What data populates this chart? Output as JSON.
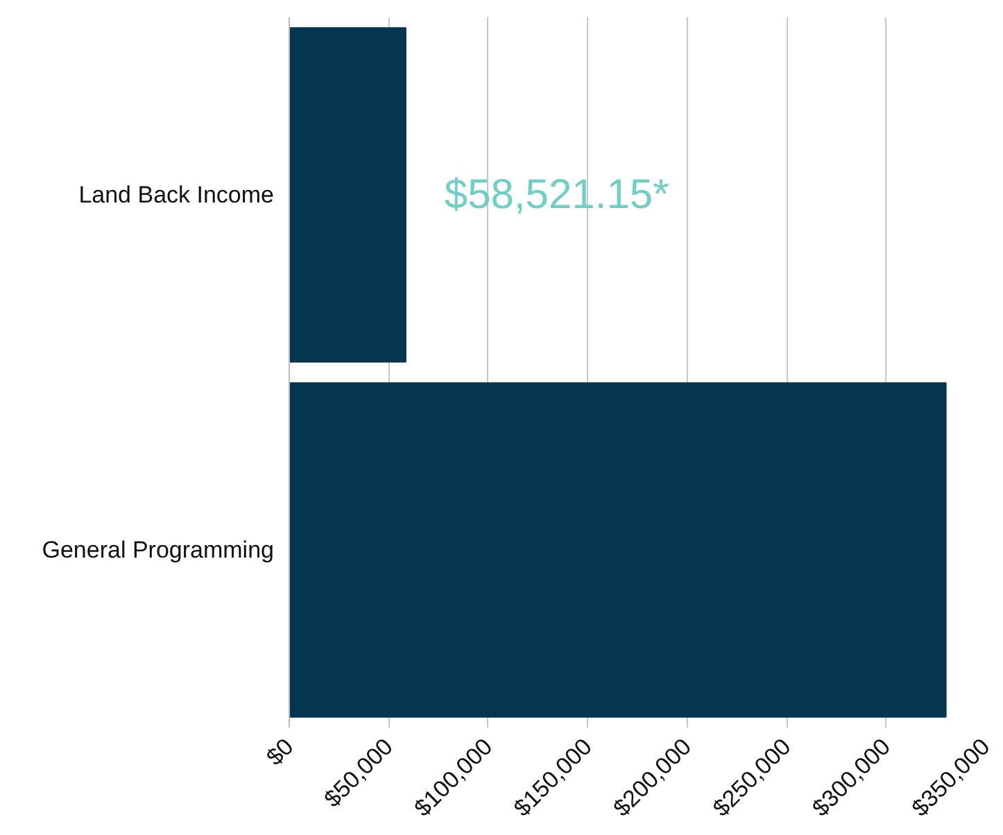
{
  "chart_data": {
    "type": "bar",
    "orientation": "horizontal",
    "categories": [
      "Land Back Income",
      "General Programming"
    ],
    "values": [
      58521.15,
      330000
    ],
    "value_labels": [
      "$58,521.15*",
      null
    ],
    "color": "#04374f",
    "xlim": [
      0,
      350000
    ],
    "xticks": [
      {
        "value": 0,
        "label": "$0"
      },
      {
        "value": 50000,
        "label": "$50,000"
      },
      {
        "value": 100000,
        "label": "$100,000"
      },
      {
        "value": 150000,
        "label": "$150,000"
      },
      {
        "value": 200000,
        "label": "$200,000"
      },
      {
        "value": 250000,
        "label": "$250,000"
      },
      {
        "value": 300000,
        "label": "$300,000"
      },
      {
        "value": 350000,
        "label": "$350,000"
      }
    ],
    "grid": "x"
  }
}
